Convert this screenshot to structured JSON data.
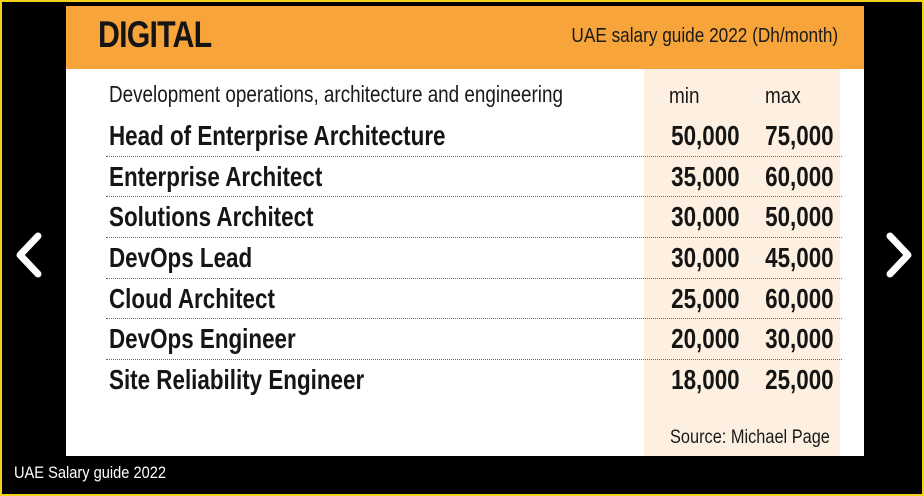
{
  "slide": {
    "header_title": "DIGITAL",
    "header_subtitle": "UAE salary guide 2022 (Dh/month)",
    "column_label": "Development operations, architecture and engineering",
    "min_label": "min",
    "max_label": "max",
    "rows": [
      {
        "title": "Head of Enterprise Architecture",
        "min": "50,000",
        "max": "75,000"
      },
      {
        "title": "Enterprise Architect",
        "min": "35,000",
        "max": "60,000"
      },
      {
        "title": "Solutions Architect",
        "min": "30,000",
        "max": "50,000"
      },
      {
        "title": "DevOps Lead",
        "min": "30,000",
        "max": "45,000"
      },
      {
        "title": "Cloud Architect",
        "min": "25,000",
        "max": "60,000"
      },
      {
        "title": "DevOps Engineer",
        "min": "20,000",
        "max": "30,000"
      },
      {
        "title": "Site Reliability Engineer",
        "min": "18,000",
        "max": "25,000"
      }
    ],
    "source": "Source: Michael Page"
  },
  "caption": "UAE Salary guide 2022",
  "colors": {
    "header_bg": "#f7a53a",
    "shade_col": "#fdf0e1",
    "frame_border": "#f2d21b",
    "background": "#000000"
  },
  "icons": {
    "prev": "chevron-left-icon",
    "next": "chevron-right-icon"
  }
}
